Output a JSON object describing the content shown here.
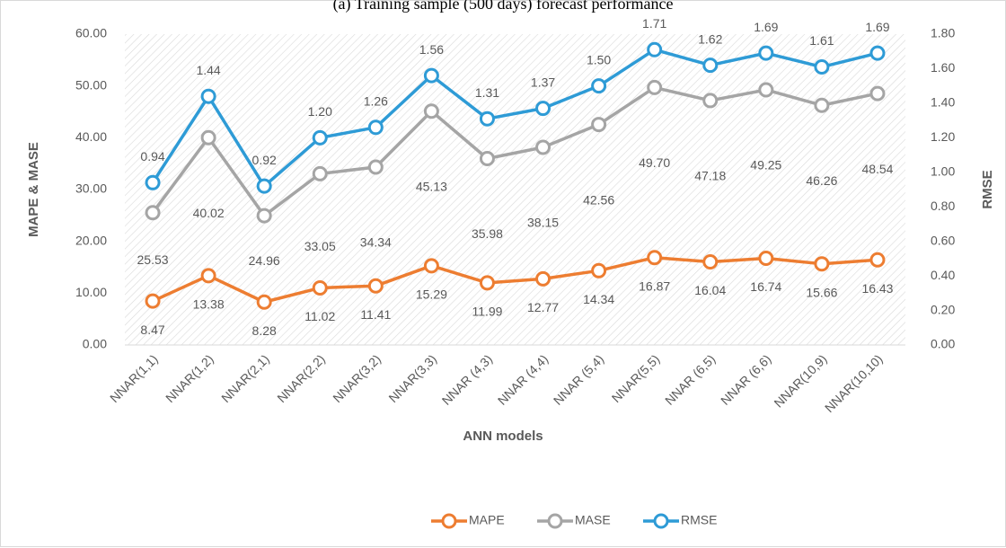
{
  "chart_data": {
    "type": "line",
    "title": "(a) Training sample (500 days) forecast performance",
    "x_label": "ANN models",
    "y_label": "MAPE & MASE",
    "y2_label": "RMSE",
    "categories": [
      "NNAR(1,1)",
      "NNAR(1,2)",
      "NNAR(2,1)",
      "NNAR(2,2)",
      "NNAR(3,2)",
      "NNAR(3,3)",
      "NNAR (4,3)",
      "NNAR (4,4)",
      "NNAR (5,4)",
      "NNAR(5,5)",
      "NNAR (6,5)",
      "NNAR (6,6)",
      "NNAR(10,9)",
      "NNAR(10,10)"
    ],
    "series": [
      {
        "name": "MAPE",
        "color": "#ed7d31",
        "axis": "y",
        "values": [
          8.47,
          13.38,
          8.28,
          11.02,
          11.41,
          15.29,
          11.99,
          12.77,
          14.34,
          16.87,
          16.04,
          16.74,
          15.66,
          16.43
        ],
        "value_labels": [
          "8.47",
          "13.38",
          "8.28",
          "11.02",
          "11.41",
          "15.29",
          "11.99",
          "12.77",
          "14.34",
          "16.87",
          "16.04",
          "16.74",
          "15.66",
          "16.43"
        ]
      },
      {
        "name": "MASE",
        "color": "#a5a5a5",
        "axis": "y",
        "values": [
          25.53,
          40.02,
          24.96,
          33.05,
          34.34,
          45.13,
          35.98,
          38.15,
          42.56,
          49.7,
          47.18,
          49.25,
          46.26,
          48.54
        ],
        "value_labels": [
          "25.53",
          "40.02",
          "24.96",
          "33.05",
          "34.34",
          "45.13",
          "35.98",
          "38.15",
          "42.56",
          "49.70",
          "47.18",
          "49.25",
          "46.26",
          "48.54"
        ]
      },
      {
        "name": "RMSE",
        "color": "#2e9bd6",
        "axis": "y2",
        "values": [
          0.94,
          1.44,
          0.92,
          1.2,
          1.26,
          1.56,
          1.31,
          1.37,
          1.5,
          1.71,
          1.62,
          1.69,
          1.61,
          1.69
        ],
        "value_labels": [
          "0.94",
          "1.44",
          "0.92",
          "1.20",
          "1.26",
          "1.56",
          "1.31",
          "1.37",
          "1.50",
          "1.71",
          "1.62",
          "1.69",
          "1.61",
          "1.69"
        ]
      }
    ],
    "ylim": [
      0,
      60
    ],
    "yticks": [
      {
        "value": 0,
        "label": "0.00"
      },
      {
        "value": 10,
        "label": "10.00"
      },
      {
        "value": 20,
        "label": "20.00"
      },
      {
        "value": 30,
        "label": "30.00"
      },
      {
        "value": 40,
        "label": "40.00"
      },
      {
        "value": 50,
        "label": "50.00"
      },
      {
        "value": 60,
        "label": "60.00"
      }
    ],
    "y2lim": [
      0,
      1.8
    ],
    "y2ticks": [
      {
        "value": 0,
        "label": "0.00"
      },
      {
        "value": 0.2,
        "label": "0.20"
      },
      {
        "value": 0.4,
        "label": "0.40"
      },
      {
        "value": 0.6,
        "label": "0.60"
      },
      {
        "value": 0.8,
        "label": "0.80"
      },
      {
        "value": 1,
        "label": "1.00"
      },
      {
        "value": 1.2,
        "label": "1.20"
      },
      {
        "value": 1.4,
        "label": "1.40"
      },
      {
        "value": 1.6,
        "label": "1.60"
      },
      {
        "value": 1.8,
        "label": "1.80"
      }
    ],
    "legend": "bottom"
  }
}
